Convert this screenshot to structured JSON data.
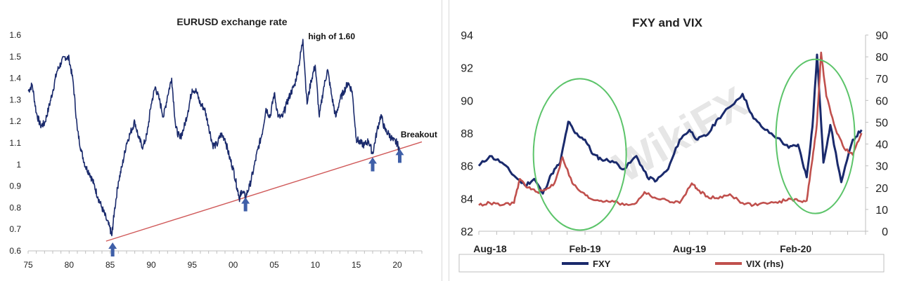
{
  "chart_data": [
    {
      "type": "line",
      "title": "EURUSD exchange rate",
      "x_tick_labels": [
        "75",
        "80",
        "85",
        "90",
        "95",
        "00",
        "05",
        "10",
        "15",
        "20"
      ],
      "y_tick_labels": [
        "0.6",
        "0.7",
        "0.8",
        "0.9",
        "1",
        "1.1",
        "1.2",
        "1.3",
        "1.4",
        "1.5",
        "1.6"
      ],
      "xlim": [
        1975,
        2023
      ],
      "ylim": [
        0.6,
        1.6
      ],
      "series": [
        {
          "color": "#1a2a6c",
          "x": [
            1975.0,
            1975.5,
            1976.0,
            1976.5,
            1977.0,
            1977.5,
            1978.0,
            1978.5,
            1979.0,
            1979.5,
            1980.0,
            1980.5,
            1981.0,
            1981.5,
            1982.0,
            1982.5,
            1983.0,
            1983.5,
            1984.0,
            1984.5,
            1985.0,
            1985.2,
            1985.5,
            1986.0,
            1986.5,
            1987.0,
            1987.5,
            1988.0,
            1988.5,
            1989.0,
            1989.5,
            1990.0,
            1990.5,
            1991.0,
            1991.5,
            1992.0,
            1992.5,
            1993.0,
            1993.5,
            1994.0,
            1994.5,
            1995.0,
            1995.5,
            1996.0,
            1996.5,
            1997.0,
            1997.5,
            1998.0,
            1998.5,
            1999.0,
            1999.5,
            2000.0,
            2000.5,
            2000.8,
            2001.0,
            2001.5,
            2002.0,
            2002.5,
            2003.0,
            2003.5,
            2004.0,
            2004.5,
            2005.0,
            2005.5,
            2006.0,
            2006.5,
            2007.0,
            2007.5,
            2008.0,
            2008.5,
            2009.0,
            2009.5,
            2010.0,
            2010.5,
            2011.0,
            2011.5,
            2012.0,
            2012.5,
            2013.0,
            2013.5,
            2014.0,
            2014.5,
            2015.0,
            2015.5,
            2016.0,
            2016.5,
            2017.0,
            2017.5,
            2018.0,
            2018.5,
            2019.0,
            2019.5,
            2020.0,
            2020.3
          ],
          "y": [
            1.34,
            1.37,
            1.24,
            1.18,
            1.19,
            1.26,
            1.34,
            1.43,
            1.47,
            1.5,
            1.49,
            1.38,
            1.16,
            1.06,
            0.99,
            0.96,
            0.91,
            0.85,
            0.8,
            0.75,
            0.7,
            0.67,
            0.78,
            0.92,
            1.0,
            1.1,
            1.15,
            1.2,
            1.12,
            1.08,
            1.14,
            1.28,
            1.36,
            1.3,
            1.22,
            1.32,
            1.4,
            1.17,
            1.12,
            1.17,
            1.25,
            1.35,
            1.34,
            1.28,
            1.26,
            1.18,
            1.09,
            1.09,
            1.14,
            1.12,
            1.04,
            0.98,
            0.89,
            0.84,
            0.88,
            0.85,
            0.9,
            0.98,
            1.07,
            1.14,
            1.26,
            1.22,
            1.33,
            1.22,
            1.22,
            1.28,
            1.33,
            1.37,
            1.46,
            1.58,
            1.28,
            1.39,
            1.46,
            1.22,
            1.35,
            1.44,
            1.32,
            1.22,
            1.3,
            1.34,
            1.38,
            1.34,
            1.12,
            1.1,
            1.09,
            1.11,
            1.05,
            1.15,
            1.23,
            1.16,
            1.14,
            1.11,
            1.1,
            1.06
          ]
        }
      ],
      "trendline": {
        "x": [
          1984.5,
          2023
        ],
        "y": [
          0.645,
          1.105
        ],
        "color": "#d05a5a"
      },
      "annotations": [
        {
          "text": "high of 1.60",
          "x": 2008.8,
          "y": 1.58
        },
        {
          "text": "Breakout",
          "x": 2020.5,
          "y": 1.12
        }
      ],
      "arrows_at_x": [
        1985.3,
        2001.5,
        2017.0,
        2020.3
      ],
      "grid": false,
      "legend": "none"
    },
    {
      "type": "line",
      "title": "FXY and VIX",
      "x_tick_labels": [
        "Aug-18",
        "Feb-19",
        "Aug-19",
        "Feb-20"
      ],
      "y_left_tick_labels": [
        "82",
        "84",
        "86",
        "88",
        "90",
        "92",
        "94"
      ],
      "y_right_tick_labels": [
        "0",
        "10",
        "20",
        "30",
        "40",
        "50",
        "60",
        "70",
        "80",
        "90"
      ],
      "xlim": [
        "2018-08-01",
        "2020-06-01"
      ],
      "ylim_left": [
        82,
        94
      ],
      "ylim_right": [
        0,
        90
      ],
      "grid": false,
      "legend": "bottom",
      "legend_labels": [
        "FXY",
        "VIX (rhs)"
      ],
      "series": [
        {
          "name": "FXY",
          "axis": "left",
          "color": "#1a2a6c",
          "x": [
            "2018-08-01",
            "2018-08-20",
            "2018-09-10",
            "2018-10-01",
            "2018-10-20",
            "2018-11-05",
            "2018-11-20",
            "2018-12-05",
            "2018-12-20",
            "2019-01-03",
            "2019-01-15",
            "2019-02-01",
            "2019-02-15",
            "2019-03-01",
            "2019-03-20",
            "2019-04-10",
            "2019-05-01",
            "2019-05-20",
            "2019-06-05",
            "2019-06-25",
            "2019-07-15",
            "2019-08-01",
            "2019-08-15",
            "2019-09-01",
            "2019-09-20",
            "2019-10-10",
            "2019-11-01",
            "2019-11-20",
            "2019-12-10",
            "2020-01-01",
            "2020-01-20",
            "2020-02-05",
            "2020-02-20",
            "2020-03-01",
            "2020-03-09",
            "2020-03-20",
            "2020-04-01",
            "2020-04-20",
            "2020-05-10",
            "2020-05-25"
          ],
          "y": [
            86.0,
            86.6,
            86.2,
            85.4,
            84.8,
            85.2,
            84.3,
            85.5,
            86.2,
            88.7,
            88.0,
            87.6,
            86.7,
            86.4,
            86.3,
            85.8,
            86.6,
            85.3,
            85.1,
            85.8,
            87.6,
            88.2,
            87.6,
            87.9,
            88.9,
            89.6,
            90.4,
            88.9,
            88.2,
            87.7,
            87.1,
            87.3,
            85.3,
            88.4,
            92.8,
            86.2,
            88.5,
            85.0,
            87.6,
            88.2
          ]
        },
        {
          "name": "VIX (rhs)",
          "axis": "right",
          "color": "#c0504d",
          "x": [
            "2018-08-01",
            "2018-08-20",
            "2018-09-10",
            "2018-10-01",
            "2018-10-11",
            "2018-10-25",
            "2018-11-10",
            "2018-11-25",
            "2018-12-10",
            "2018-12-24",
            "2019-01-10",
            "2019-01-25",
            "2019-02-10",
            "2019-03-01",
            "2019-03-20",
            "2019-04-10",
            "2019-05-01",
            "2019-05-15",
            "2019-06-05",
            "2019-06-25",
            "2019-07-15",
            "2019-08-05",
            "2019-08-15",
            "2019-09-01",
            "2019-09-20",
            "2019-10-10",
            "2019-11-01",
            "2019-11-20",
            "2019-12-10",
            "2020-01-01",
            "2020-01-20",
            "2020-02-05",
            "2020-02-20",
            "2020-03-01",
            "2020-03-09",
            "2020-03-16",
            "2020-03-25",
            "2020-04-10",
            "2020-04-25",
            "2020-05-10",
            "2020-05-25"
          ],
          "y": [
            12,
            13,
            12,
            13,
            24,
            20,
            18,
            19,
            22,
            34,
            22,
            18,
            15,
            14,
            14,
            12,
            13,
            18,
            15,
            14,
            13,
            22,
            19,
            16,
            15,
            17,
            13,
            12,
            13,
            13,
            15,
            14,
            14,
            33,
            50,
            82,
            62,
            47,
            38,
            35,
            45
          ]
        }
      ],
      "highlight_ellipses": [
        {
          "x_center": "2019-01-23",
          "y_center_left": 86.7,
          "color": "#5cc46a"
        },
        {
          "x_center": "2020-03-06",
          "y_center_left": 87.8,
          "color": "#5cc46a"
        }
      ]
    }
  ]
}
